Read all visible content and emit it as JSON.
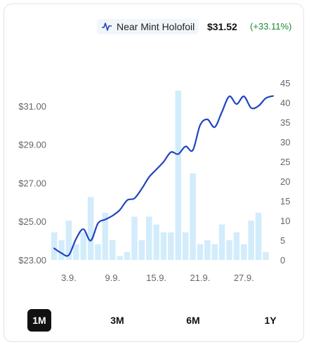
{
  "legend": {
    "icon": "line-chart-icon",
    "series_name": "Near Mint Holofoil",
    "price": "$31.52",
    "change": "(+33.11%)",
    "change_color": "#1b8a3a"
  },
  "ranges": {
    "items": [
      "1M",
      "3M",
      "6M",
      "1Y"
    ],
    "selected": "1M"
  },
  "colors": {
    "line": "#1f44c0",
    "bar": "#d2ecfb"
  },
  "chart_data": {
    "type": "line",
    "title": "",
    "xlabel": "",
    "ylabel": "",
    "x_tick_labels": [
      "3.9.",
      "9.9.",
      "15.9.",
      "21.9.",
      "27.9."
    ],
    "x_tick_days": [
      3,
      9,
      15,
      21,
      27
    ],
    "y_left": {
      "ticks": [
        "$23.00",
        "$25.00",
        "$27.00",
        "$29.00",
        "$31.00"
      ],
      "ylim": [
        23,
        32.2
      ]
    },
    "y_right": {
      "ticks": [
        "0",
        "5",
        "10",
        "15",
        "20",
        "25",
        "30",
        "35",
        "40",
        "45"
      ],
      "ylim": [
        0,
        45
      ]
    },
    "series": [
      {
        "name": "Near Mint Holofoil",
        "kind": "line",
        "axis": "left",
        "x": [
          1,
          2,
          3,
          4,
          5,
          6,
          7,
          8,
          9,
          10,
          11,
          12,
          13,
          14,
          15,
          16,
          17,
          18,
          19,
          20,
          21,
          22,
          23,
          24,
          25,
          26,
          27,
          28,
          29,
          30,
          31
        ],
        "y": [
          23.6,
          23.35,
          23.25,
          24.1,
          24.6,
          24.0,
          24.9,
          25.1,
          25.3,
          25.6,
          26.1,
          26.2,
          26.7,
          27.3,
          27.7,
          28.1,
          28.6,
          28.5,
          28.9,
          28.7,
          30.0,
          30.3,
          29.9,
          30.7,
          31.5,
          31.1,
          31.5,
          30.9,
          31.0,
          31.4,
          31.52
        ]
      },
      {
        "name": "",
        "kind": "bar",
        "axis": "right",
        "x": [
          1,
          2,
          3,
          4,
          5,
          6,
          7,
          8,
          9,
          10,
          11,
          12,
          13,
          14,
          15,
          16,
          17,
          18,
          19,
          20,
          21,
          22,
          23,
          24,
          25,
          26,
          27,
          28,
          29,
          30,
          31
        ],
        "values": [
          7,
          5,
          10,
          4,
          7,
          16,
          4,
          12,
          5,
          1,
          2,
          11,
          5,
          11,
          9,
          7,
          7,
          43,
          7,
          22,
          4,
          5,
          4,
          9,
          5,
          7,
          4,
          10,
          12,
          2,
          0
        ]
      }
    ],
    "grid": false,
    "legend_position": "top-right"
  }
}
